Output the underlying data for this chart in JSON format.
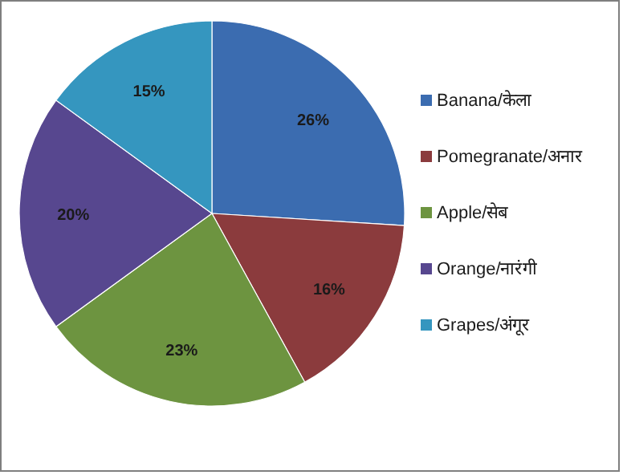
{
  "chart_data": {
    "type": "pie",
    "categories": [
      "Banana/केला",
      "Pomegranate/अनार",
      "Apple/सेब",
      "Orange/नारंगी",
      "Grapes/अंगूर"
    ],
    "values": [
      26,
      16,
      23,
      20,
      15
    ],
    "value_labels": [
      "26%",
      "16%",
      "23%",
      "20%",
      "15%"
    ],
    "colors": [
      "#3b6cb0",
      "#8b3b3d",
      "#6d9440",
      "#57478f",
      "#3596bf"
    ],
    "legend": "right"
  }
}
